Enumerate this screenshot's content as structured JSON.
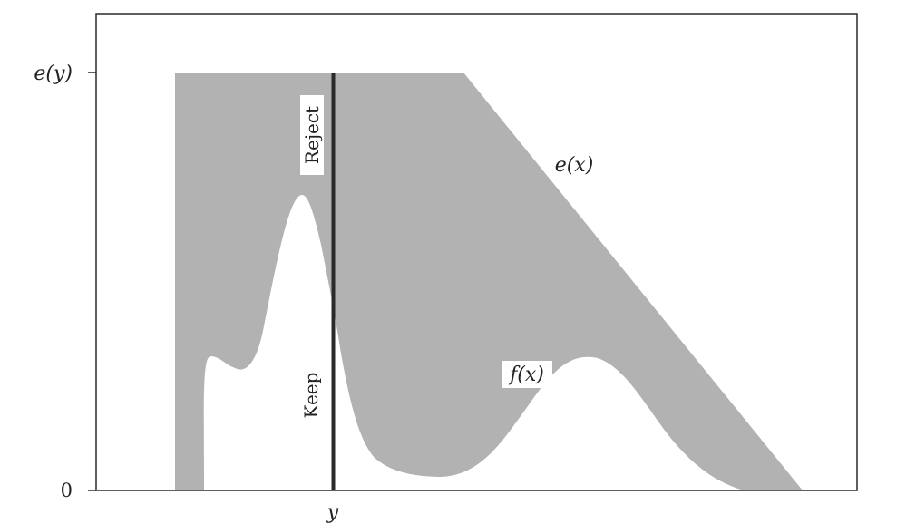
{
  "colors": {
    "background": "#ffffff",
    "shaded_region": "#b2b2b2",
    "line": "#2a2a2a",
    "text": "#222222",
    "label_box": "#ffffff"
  },
  "axes": {
    "y_tick_top": "e(y)",
    "y_tick_bottom": "0",
    "x_tick": "y"
  },
  "regions": {
    "reject_label": "Reject",
    "keep_label": "Keep"
  },
  "curves": {
    "envelope_label": "e(x)",
    "density_label": "f(x)"
  }
}
